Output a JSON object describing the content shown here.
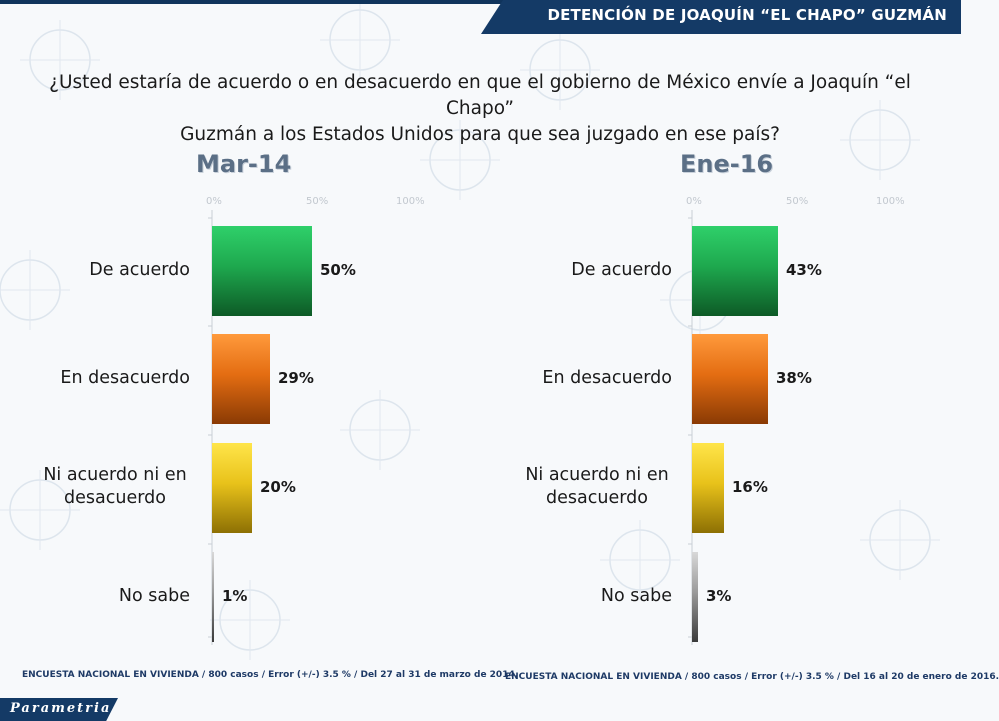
{
  "header": {
    "title": "DETENCIÓN DE JOAQUÍN “EL CHAPO” GUZMÁN"
  },
  "question": {
    "line1": "¿Usted estaría de acuerdo o en desacuerdo en que el gobierno de México envíe a Joaquín “el Chapo”",
    "line2": "Guzmán a los Estados Unidos para que sea juzgado en ese país?"
  },
  "chart_data": [
    {
      "type": "bar",
      "title": "Mar-14",
      "categories": [
        "De acuerdo",
        "En desacuerdo",
        "Ni acuerdo ni en desacuerdo",
        "No sabe"
      ],
      "values": [
        50,
        29,
        20,
        1
      ],
      "value_labels": [
        "50%",
        "29%",
        "20%",
        "1%"
      ],
      "xlim": [
        0,
        100
      ],
      "ticks": [
        "0%",
        "50%",
        "100%"
      ],
      "footnote": "ENCUESTA NACIONAL EN VIVIENDA / 800 casos / Error (+/-) 3.5 % / Del 27 al 31 de marzo de 2014."
    },
    {
      "type": "bar",
      "title": "Ene-16",
      "categories": [
        "De acuerdo",
        "En desacuerdo",
        "Ni acuerdo ni en desacuerdo",
        "No sabe"
      ],
      "values": [
        43,
        38,
        16,
        3
      ],
      "value_labels": [
        "43%",
        "38%",
        "16%",
        "3%"
      ],
      "xlim": [
        0,
        100
      ],
      "ticks": [
        "0%",
        "50%",
        "100%"
      ],
      "footnote": "ENCUESTA NACIONAL EN VIVIENDA / 800 casos / Error (+/-) 3.5 % / Del 16 al 20 de enero de 2016."
    }
  ],
  "colors": {
    "de_acuerdo": "#1ea84e",
    "en_desacuerdo": "#e46d12",
    "ni_acuerdo": "#e8c21a",
    "no_sabe": "#9a9a9a",
    "brand": "#143a66"
  },
  "logo": {
    "text": "Parametria"
  }
}
